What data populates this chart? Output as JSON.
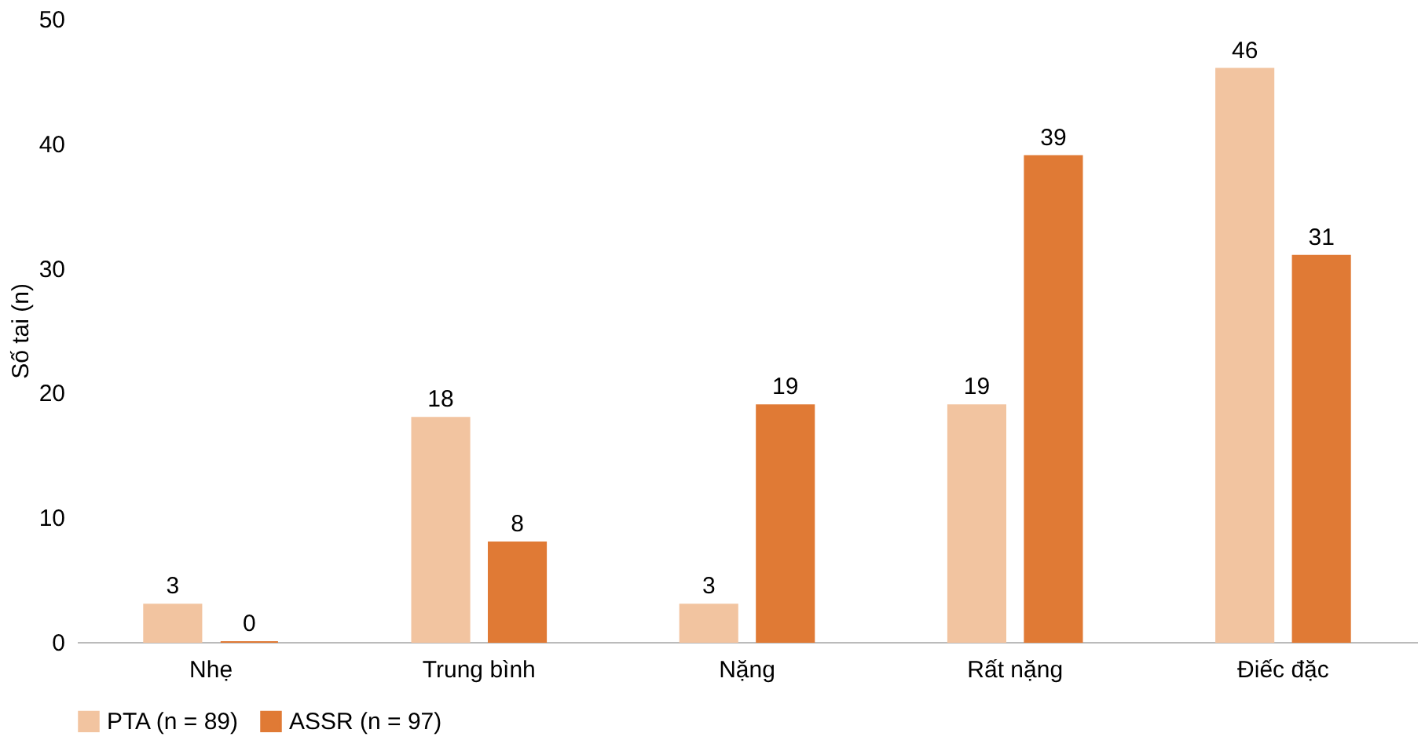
{
  "chart_data": {
    "type": "bar",
    "ylabel": "Số tai (n)",
    "categories": [
      "Nhẹ",
      "Trung bình",
      "Nặng",
      "Rất nặng",
      "Điếc đặc"
    ],
    "series": [
      {
        "name": "PTA (n = 89)",
        "color": "#f2c4a0",
        "values": [
          3,
          18,
          3,
          19,
          46
        ]
      },
      {
        "name": "ASSR (n = 97)",
        "color": "#e07a35",
        "values": [
          0,
          8,
          19,
          39,
          31
        ]
      }
    ],
    "ylim": [
      0,
      50
    ],
    "yticks": [
      0,
      10,
      20,
      30,
      40,
      50
    ],
    "grid": false,
    "legend": "bottom",
    "data_labels": true
  }
}
